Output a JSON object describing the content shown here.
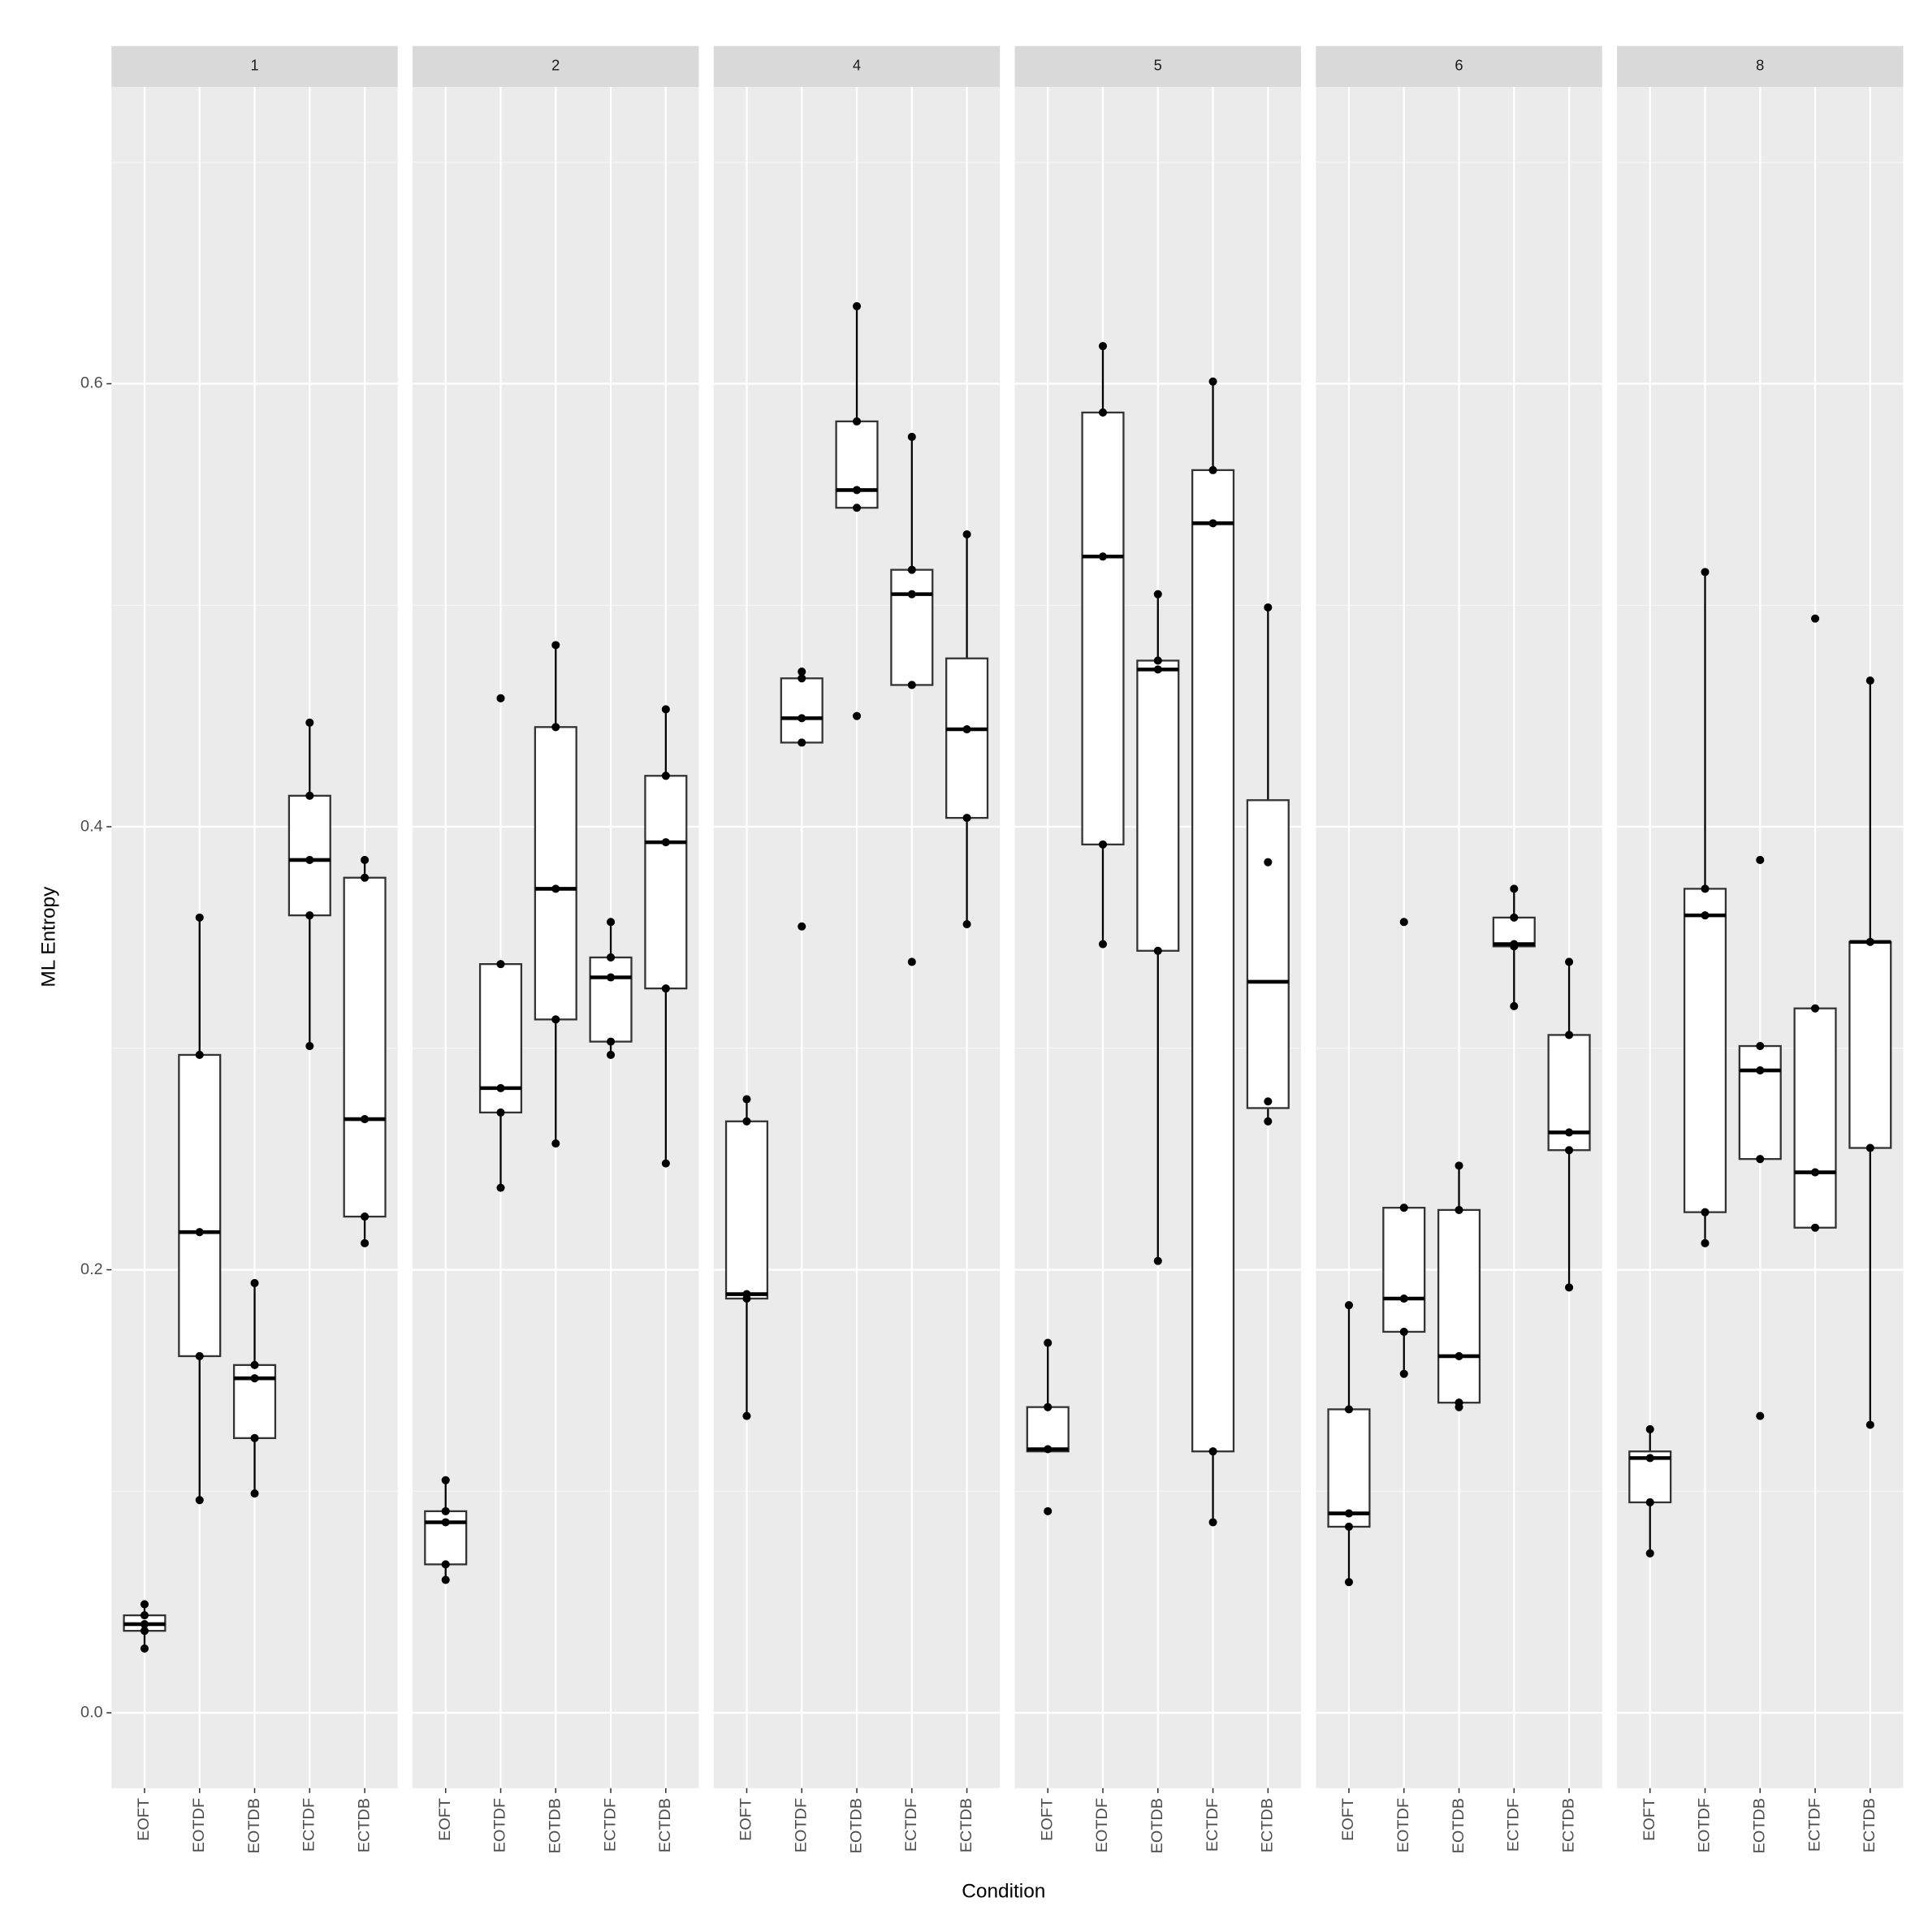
{
  "chart_data": {
    "type": "box",
    "y_label": "ML Entropy",
    "x_label": "Condition",
    "ylim": [
      -0.034,
      0.734
    ],
    "yticks": [
      {
        "value": 0,
        "label": "0.0"
      },
      0.2,
      0.4,
      0.6
    ],
    "minor_yticks": [
      0.1,
      0.3,
      0.5,
      0.7
    ],
    "grid": true,
    "panels": [
      {
        "title": "1",
        "categories": [
          "EOFT",
          "EOTDF",
          "EOTDB",
          "ECTDF",
          "ECTDB"
        ],
        "boxes": [
          {
            "whisker_low": 0.029,
            "q1": 0.037,
            "median": 0.04,
            "q3": 0.044,
            "whisker_high": 0.049,
            "points": [
              0.049,
              0.044,
              0.04,
              0.037,
              0.029
            ]
          },
          {
            "whisker_low": 0.096,
            "q1": 0.161,
            "median": 0.217,
            "q3": 0.297,
            "whisker_high": 0.359,
            "points": [
              0.359,
              0.297,
              0.217,
              0.161,
              0.096
            ]
          },
          {
            "whisker_low": 0.099,
            "q1": 0.124,
            "median": 0.151,
            "q3": 0.157,
            "whisker_high": 0.194,
            "points": [
              0.194,
              0.157,
              0.151,
              0.124,
              0.099
            ]
          },
          {
            "whisker_low": 0.301,
            "q1": 0.36,
            "median": 0.385,
            "q3": 0.414,
            "whisker_high": 0.447,
            "points": [
              0.447,
              0.414,
              0.385,
              0.36,
              0.301
            ]
          },
          {
            "whisker_low": 0.212,
            "q1": 0.224,
            "median": 0.268,
            "q3": 0.377,
            "whisker_high": 0.385,
            "points": [
              0.385,
              0.377,
              0.268,
              0.224,
              0.212
            ]
          }
        ]
      },
      {
        "title": "2",
        "categories": [
          "EOFT",
          "EOTDF",
          "EOTDB",
          "ECTDF",
          "ECTDB"
        ],
        "boxes": [
          {
            "whisker_low": 0.06,
            "q1": 0.067,
            "median": 0.086,
            "q3": 0.091,
            "whisker_high": 0.105,
            "points": [
              0.105,
              0.091,
              0.086,
              0.067,
              0.06
            ]
          },
          {
            "whisker_low": 0.237,
            "q1": 0.271,
            "median": 0.282,
            "q3": 0.338,
            "whisker_high": 0.338,
            "points": [
              0.458,
              0.338,
              0.282,
              0.271,
              0.237
            ]
          },
          {
            "whisker_low": 0.257,
            "q1": 0.313,
            "median": 0.372,
            "q3": 0.445,
            "whisker_high": 0.482,
            "points": [
              0.482,
              0.445,
              0.372,
              0.313,
              0.257
            ]
          },
          {
            "whisker_low": 0.297,
            "q1": 0.303,
            "median": 0.332,
            "q3": 0.341,
            "whisker_high": 0.357,
            "points": [
              0.357,
              0.341,
              0.332,
              0.303,
              0.297
            ]
          },
          {
            "whisker_low": 0.248,
            "q1": 0.327,
            "median": 0.393,
            "q3": 0.423,
            "whisker_high": 0.453,
            "points": [
              0.453,
              0.423,
              0.393,
              0.327,
              0.248
            ]
          }
        ]
      },
      {
        "title": "4",
        "categories": [
          "EOFT",
          "EOTDF",
          "EOTDB",
          "ECTDF",
          "ECTDB"
        ],
        "boxes": [
          {
            "whisker_low": 0.134,
            "q1": 0.187,
            "median": 0.189,
            "q3": 0.267,
            "whisker_high": 0.277,
            "points": [
              0.277,
              0.267,
              0.189,
              0.187,
              0.134
            ]
          },
          {
            "whisker_low": 0.438,
            "q1": 0.438,
            "median": 0.449,
            "q3": 0.467,
            "whisker_high": 0.47,
            "points": [
              0.47,
              0.467,
              0.449,
              0.438,
              0.355
            ]
          },
          {
            "whisker_low": 0.544,
            "q1": 0.544,
            "median": 0.552,
            "q3": 0.583,
            "whisker_high": 0.635,
            "points": [
              0.635,
              0.583,
              0.552,
              0.544,
              0.45
            ]
          },
          {
            "whisker_low": 0.464,
            "q1": 0.464,
            "median": 0.505,
            "q3": 0.516,
            "whisker_high": 0.576,
            "points": [
              0.576,
              0.516,
              0.505,
              0.464,
              0.339
            ]
          },
          {
            "whisker_low": 0.356,
            "q1": 0.404,
            "median": 0.444,
            "q3": 0.476,
            "whisker_high": 0.532,
            "points": [
              0.532,
              0.444,
              0.404,
              0.356
            ]
          }
        ]
      },
      {
        "title": "5",
        "categories": [
          "EOFT",
          "EOTDF",
          "EOTDB",
          "ECTDF",
          "ECTDB"
        ],
        "boxes": [
          {
            "whisker_low": 0.118,
            "q1": 0.118,
            "median": 0.119,
            "q3": 0.138,
            "whisker_high": 0.167,
            "points": [
              0.167,
              0.138,
              0.119,
              0.091
            ]
          },
          {
            "whisker_low": 0.347,
            "q1": 0.392,
            "median": 0.522,
            "q3": 0.587,
            "whisker_high": 0.617,
            "points": [
              0.617,
              0.587,
              0.522,
              0.392,
              0.347
            ]
          },
          {
            "whisker_low": 0.204,
            "q1": 0.344,
            "median": 0.471,
            "q3": 0.475,
            "whisker_high": 0.505,
            "points": [
              0.505,
              0.475,
              0.471,
              0.344,
              0.204
            ]
          },
          {
            "whisker_low": 0.086,
            "q1": 0.118,
            "median": 0.537,
            "q3": 0.561,
            "whisker_high": 0.601,
            "points": [
              0.601,
              0.561,
              0.537,
              0.118,
              0.086
            ]
          },
          {
            "whisker_low": 0.267,
            "q1": 0.273,
            "median": 0.33,
            "q3": 0.412,
            "whisker_high": 0.499,
            "points": [
              0.499,
              0.384,
              0.276,
              0.267
            ]
          }
        ]
      },
      {
        "title": "6",
        "categories": [
          "EOFT",
          "EOTDF",
          "EOTDB",
          "ECTDF",
          "ECTDB"
        ],
        "boxes": [
          {
            "whisker_low": 0.059,
            "q1": 0.084,
            "median": 0.09,
            "q3": 0.137,
            "whisker_high": 0.184,
            "points": [
              0.184,
              0.137,
              0.09,
              0.084,
              0.059
            ]
          },
          {
            "whisker_low": 0.153,
            "q1": 0.172,
            "median": 0.187,
            "q3": 0.228,
            "whisker_high": 0.228,
            "points": [
              0.357,
              0.228,
              0.187,
              0.172,
              0.153
            ]
          },
          {
            "whisker_low": 0.138,
            "q1": 0.14,
            "median": 0.161,
            "q3": 0.227,
            "whisker_high": 0.247,
            "points": [
              0.247,
              0.227,
              0.161,
              0.14,
              0.138
            ]
          },
          {
            "whisker_low": 0.319,
            "q1": 0.346,
            "median": 0.347,
            "q3": 0.359,
            "whisker_high": 0.372,
            "points": [
              0.372,
              0.359,
              0.347,
              0.346,
              0.319
            ]
          },
          {
            "whisker_low": 0.192,
            "q1": 0.254,
            "median": 0.262,
            "q3": 0.306,
            "whisker_high": 0.339,
            "points": [
              0.339,
              0.306,
              0.262,
              0.254,
              0.192
            ]
          }
        ]
      },
      {
        "title": "8",
        "categories": [
          "EOFT",
          "EOTDF",
          "EOTDB",
          "ECTDF",
          "ECTDB"
        ],
        "boxes": [
          {
            "whisker_low": 0.072,
            "q1": 0.095,
            "median": 0.115,
            "q3": 0.118,
            "whisker_high": 0.128,
            "points": [
              0.128,
              0.115,
              0.095,
              0.072
            ]
          },
          {
            "whisker_low": 0.212,
            "q1": 0.226,
            "median": 0.36,
            "q3": 0.372,
            "whisker_high": 0.515,
            "points": [
              0.515,
              0.372,
              0.36,
              0.226,
              0.212
            ]
          },
          {
            "whisker_low": 0.25,
            "q1": 0.25,
            "median": 0.29,
            "q3": 0.301,
            "whisker_high": 0.301,
            "points": [
              0.385,
              0.301,
              0.29,
              0.25,
              0.134
            ]
          },
          {
            "whisker_low": 0.219,
            "q1": 0.219,
            "median": 0.244,
            "q3": 0.318,
            "whisker_high": 0.318,
            "points": [
              0.494,
              0.318,
              0.244,
              0.219
            ]
          },
          {
            "whisker_low": 0.13,
            "q1": 0.255,
            "median": 0.348,
            "q3": 0.348,
            "whisker_high": 0.466,
            "points": [
              0.466,
              0.348,
              0.255,
              0.13
            ]
          }
        ]
      }
    ]
  }
}
